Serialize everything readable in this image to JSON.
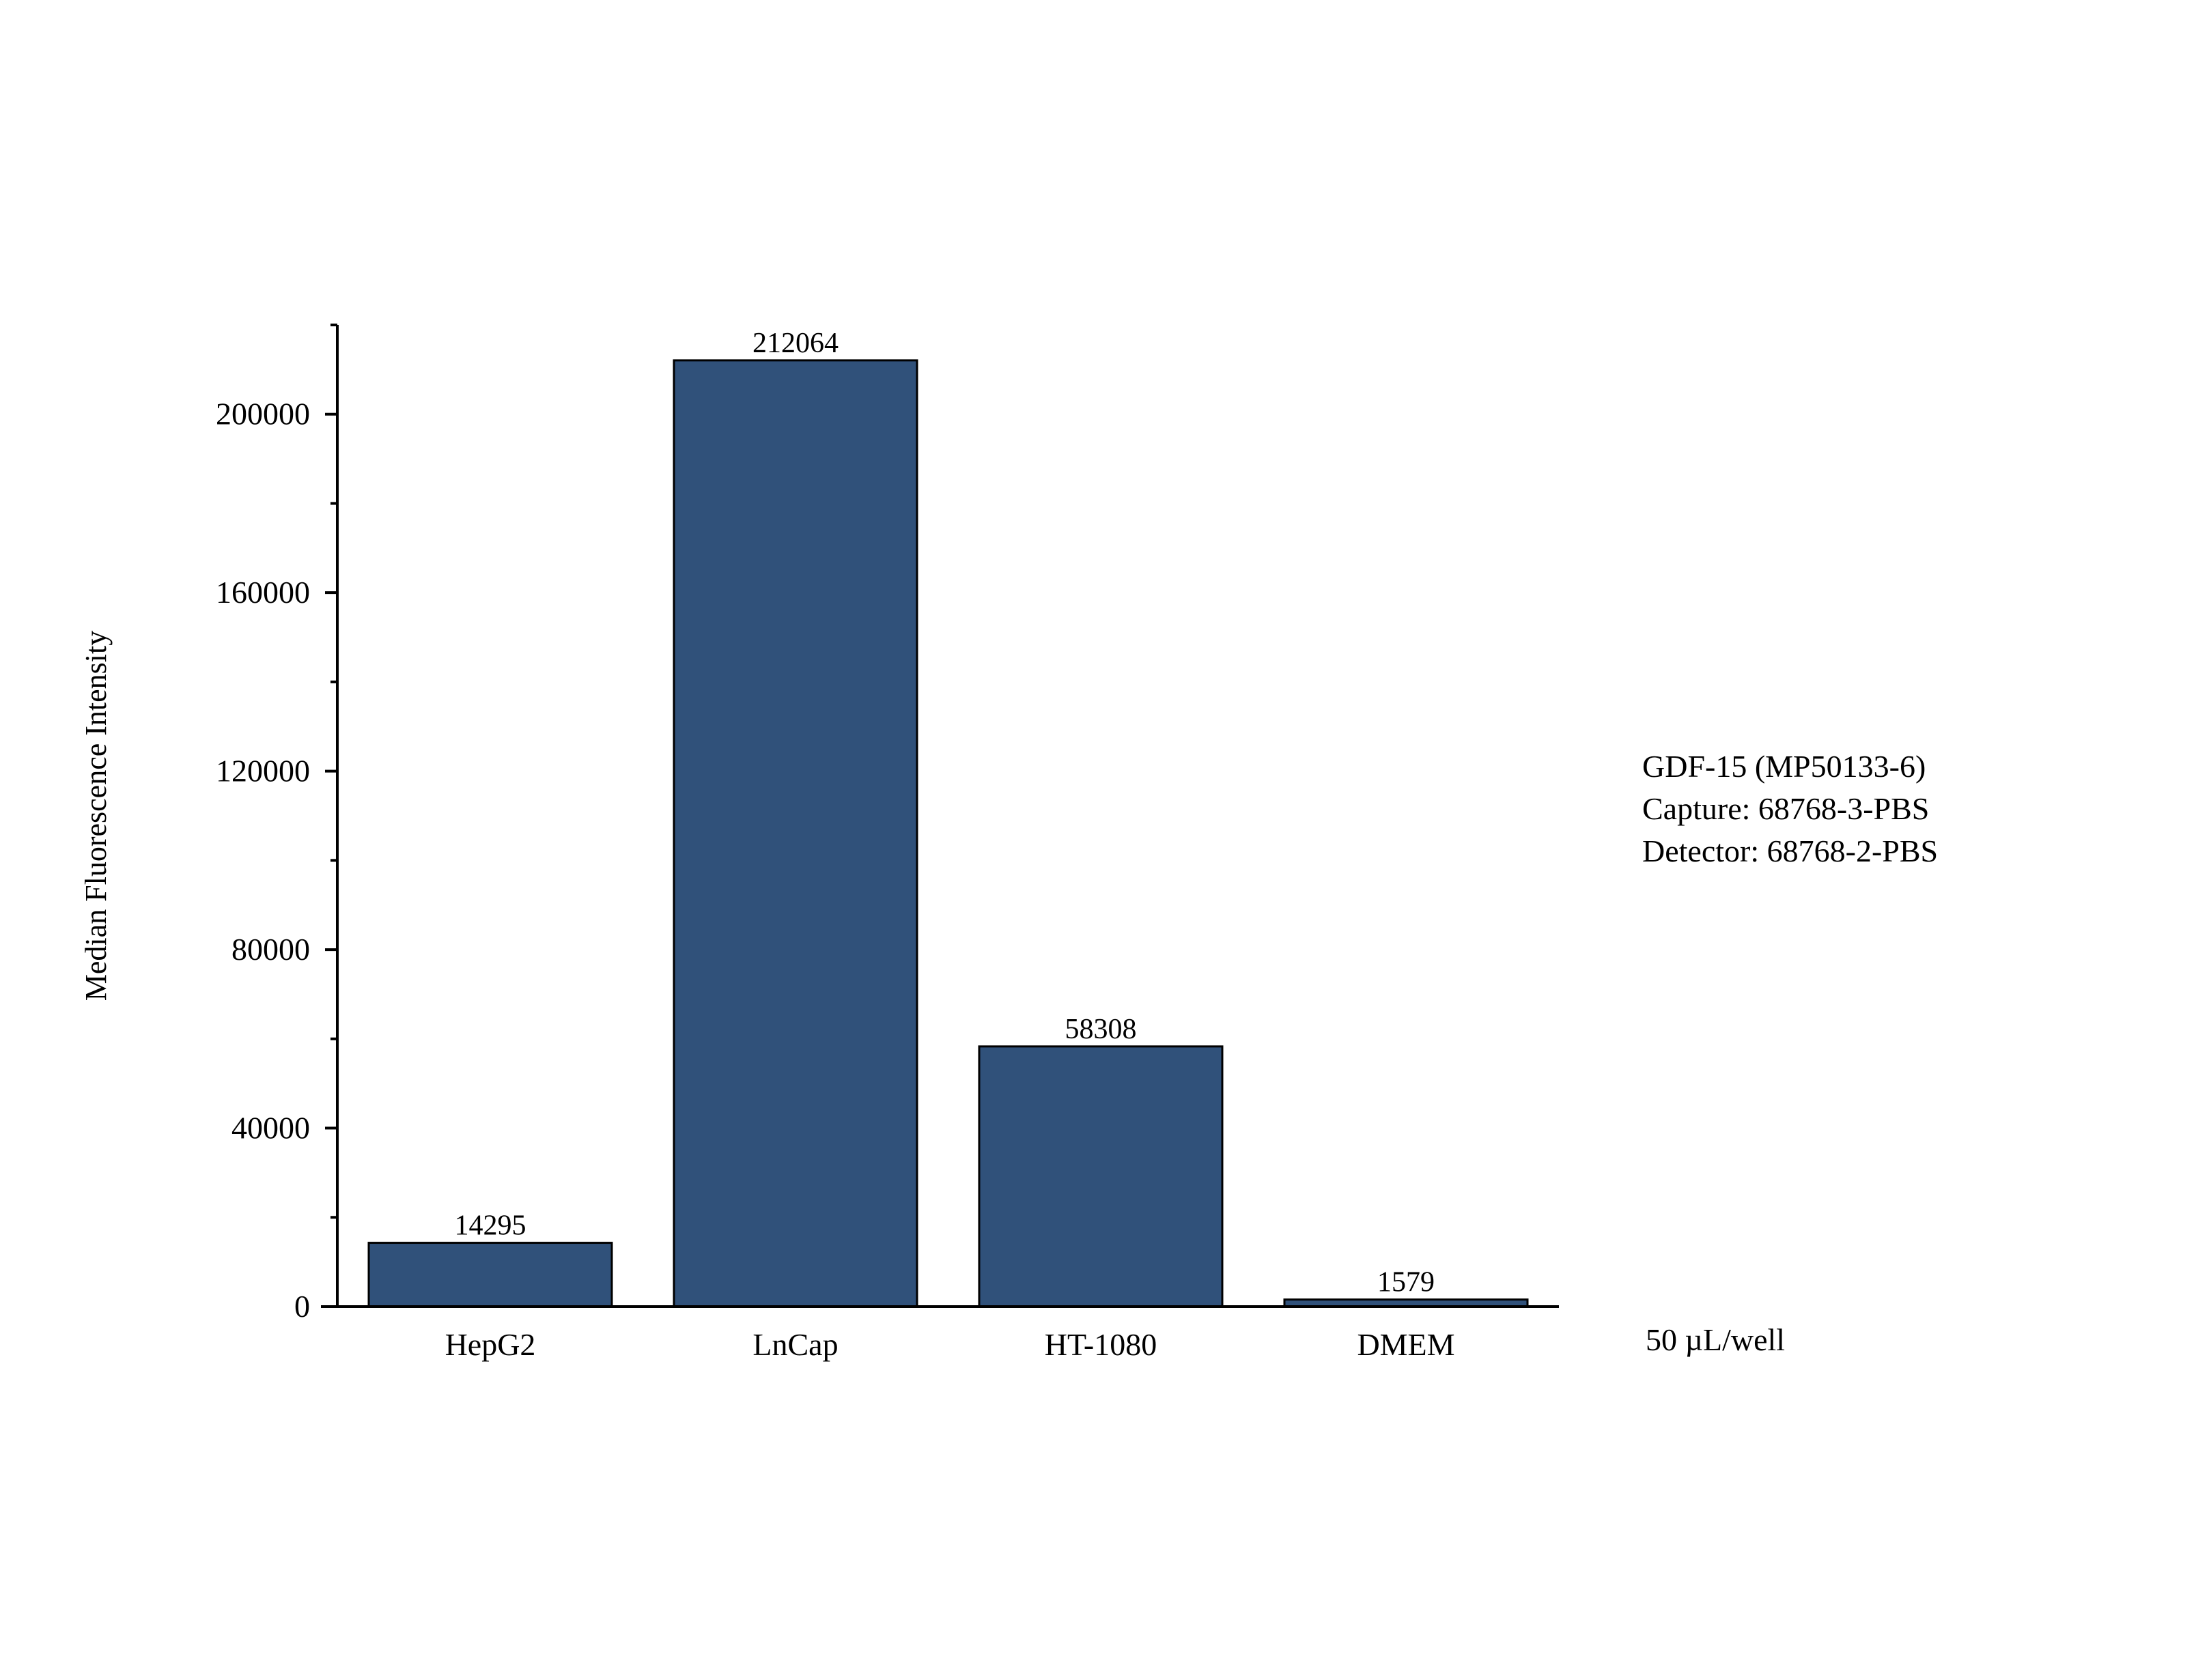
{
  "chart_data": {
    "type": "bar",
    "title": "",
    "xlabel": "",
    "ylabel": "Median Fluorescence Intensity",
    "categories": [
      "HepG2",
      "LnCap",
      "HT-1080",
      "DMEM"
    ],
    "values": [
      14295,
      212064,
      58308,
      1579
    ],
    "data_labels": [
      "14295",
      "212064",
      "58308",
      "1579"
    ],
    "ylim": [
      0,
      220000
    ],
    "yticks": [
      0,
      40000,
      80000,
      120000,
      160000,
      200000
    ],
    "ytick_labels": [
      "0",
      "40000",
      "80000",
      "120000",
      "160000",
      "200000"
    ],
    "minor_ytick_step": 20000,
    "grid": false,
    "bar_color": "#30517a",
    "bar_edge_color": "#000000",
    "annotations": {
      "legend_lines": [
        "GDF-15 (MP50133-6)",
        "Capture: 68768-3-PBS",
        "Detector: 68768-2-PBS"
      ],
      "volume_note": "50 µL/well"
    }
  }
}
